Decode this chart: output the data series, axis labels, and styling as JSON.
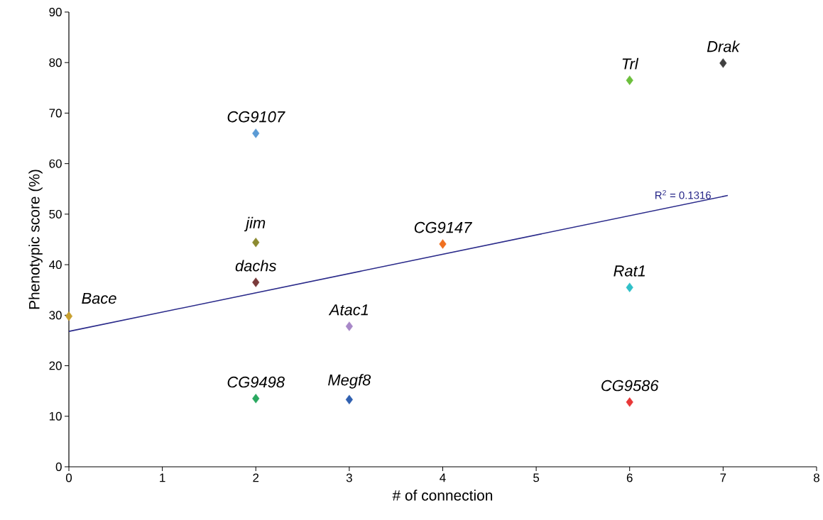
{
  "chart_data": {
    "type": "scatter",
    "xlabel": "# of connection",
    "ylabel": "Phenotypic score (%)",
    "xlim": [
      0,
      8
    ],
    "ylim": [
      0,
      90
    ],
    "xticks": [
      0,
      1,
      2,
      3,
      4,
      5,
      6,
      7,
      8
    ],
    "yticks": [
      0,
      10,
      20,
      30,
      40,
      50,
      60,
      70,
      80,
      90
    ],
    "grid": false,
    "series": [
      {
        "marker": "diamond",
        "x": [
          0,
          2,
          2,
          2,
          2,
          3,
          3,
          4,
          6,
          7,
          6,
          6
        ],
        "values": [
          29.8,
          66.0,
          44.4,
          36.5,
          13.5,
          27.8,
          13.3,
          44.1,
          76.5,
          79.9,
          35.5,
          12.8
        ],
        "colors": [
          "#c8a030",
          "#5b9bd5",
          "#8c8a30",
          "#7a3b3b",
          "#2aa860",
          "#a888c8",
          "#3060b0",
          "#f07020",
          "#6cbf3c",
          "#404040",
          "#30c0c8",
          "#e83838"
        ]
      },
      {
        "type": "line",
        "x": [
          0,
          7.05
        ],
        "values": [
          26.8,
          53.7
        ],
        "color": "#2a2a8a",
        "line_style": "solid",
        "marker": "none"
      }
    ],
    "annotations": [
      {
        "text": "Bace",
        "x": 0,
        "y": 29.8
      },
      {
        "text": "CG9107",
        "x": 2,
        "y": 66.0
      },
      {
        "text": "jim",
        "x": 2,
        "y": 44.4
      },
      {
        "text": "dachs",
        "x": 2,
        "y": 36.5
      },
      {
        "text": "CG9498",
        "x": 2,
        "y": 13.5
      },
      {
        "text": "Atac1",
        "x": 3,
        "y": 27.8
      },
      {
        "text": "Megf8",
        "x": 3,
        "y": 13.3
      },
      {
        "text": "CG9147",
        "x": 4,
        "y": 44.1
      },
      {
        "text": "Trl",
        "x": 6,
        "y": 76.5
      },
      {
        "text": "Drak",
        "x": 7,
        "y": 79.9
      },
      {
        "text": "Rat1",
        "x": 6,
        "y": 35.5
      },
      {
        "text": "CG9586",
        "x": 6,
        "y": 12.8
      },
      {
        "text": "R$^{2}$ = 0.1316",
        "x": 6.57,
        "y": 52.5
      }
    ]
  }
}
